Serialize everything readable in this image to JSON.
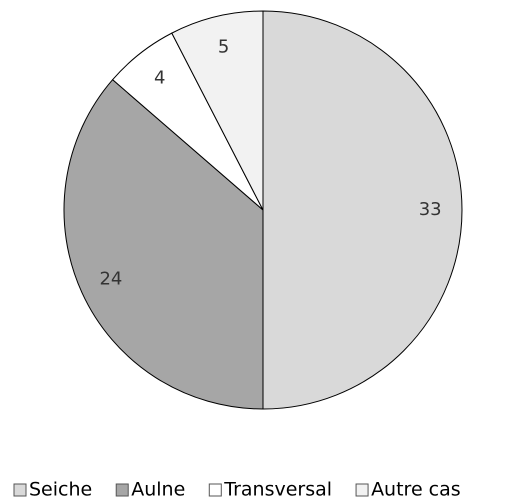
{
  "chart_data": {
    "type": "pie",
    "categories": [
      "Seiche",
      "Aulne",
      "Transversal",
      "Autre cas"
    ],
    "values": [
      33,
      24,
      4,
      5
    ],
    "colors": [
      "#d9d9d9",
      "#a6a6a6",
      "#ffffff",
      "#f2f2f2"
    ],
    "legend": "bottom"
  }
}
